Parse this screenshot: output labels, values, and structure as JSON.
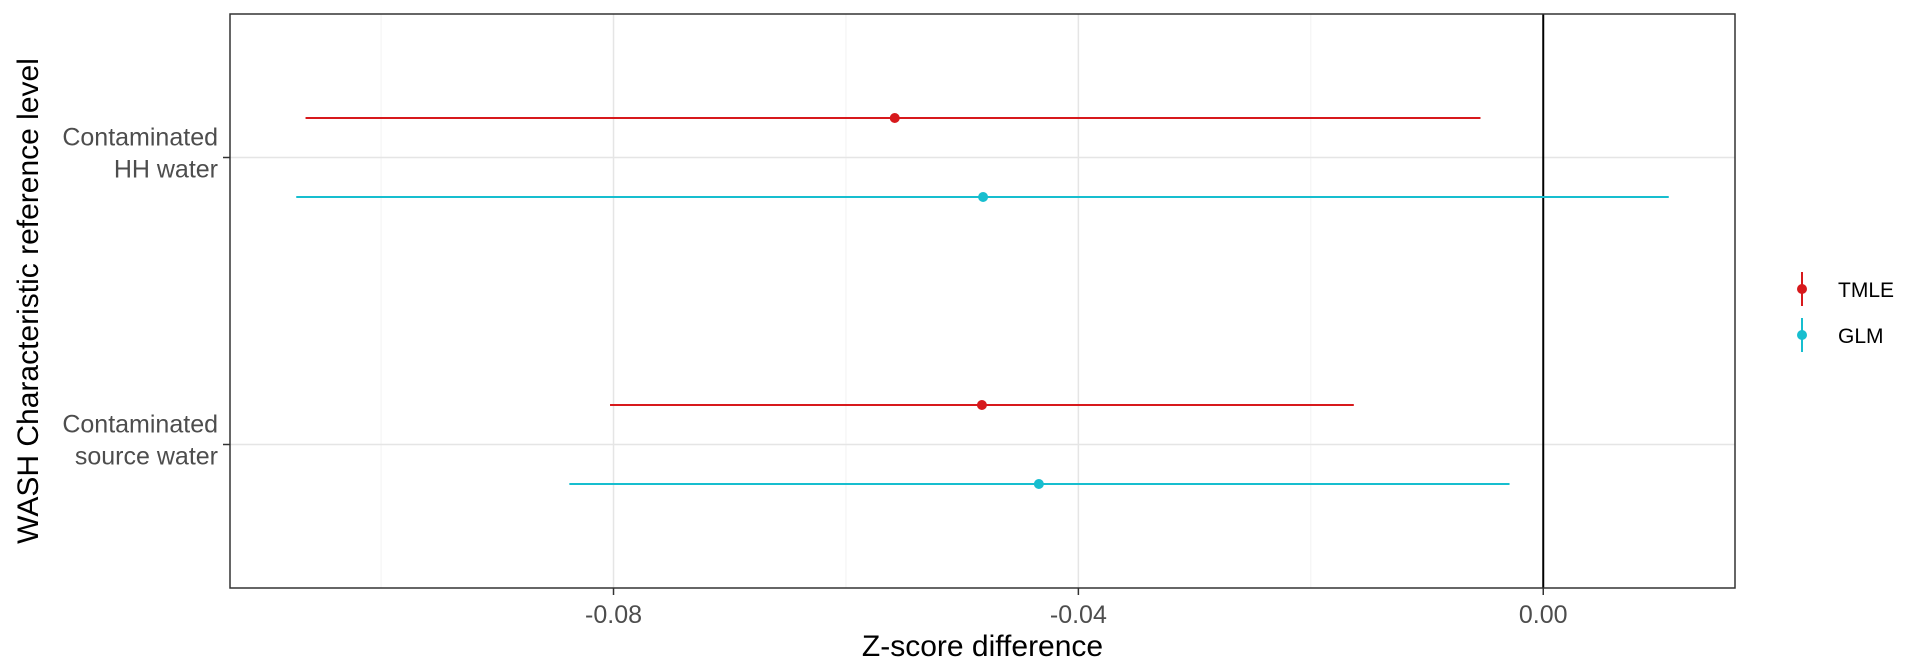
{
  "chart_data": {
    "type": "forest",
    "xlabel": "Z-score difference",
    "ylabel": "WASH Characteristic reference level",
    "xlim": [
      -0.113,
      0.0165
    ],
    "x_ticks": [
      "-0.08",
      "-0.04",
      "0.00"
    ],
    "x_tick_values": [
      -0.08,
      -0.04,
      0.0
    ],
    "reference_line": 0.0,
    "grid": true,
    "legend_position": "right",
    "categories": [
      [
        "Contaminated",
        "HH water"
      ],
      [
        "Contaminated",
        "source water"
      ]
    ],
    "series": [
      {
        "name": "TMLE",
        "color": "#d7191c",
        "points": [
          {
            "estimate": -0.0558,
            "lower": -0.1065,
            "upper": -0.0054
          },
          {
            "estimate": -0.0483,
            "lower": -0.0803,
            "upper": -0.0163
          }
        ]
      },
      {
        "name": "GLM",
        "color": "#17becf",
        "points": [
          {
            "estimate": -0.0482,
            "lower": -0.1073,
            "upper": 0.0108
          },
          {
            "estimate": -0.0434,
            "lower": -0.0838,
            "upper": -0.0029
          }
        ]
      }
    ]
  }
}
